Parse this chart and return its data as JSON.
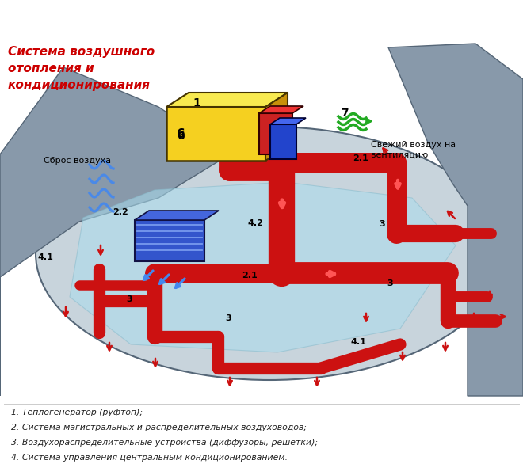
{
  "title": "Система воздушного\nотопления и\nкондиционирования",
  "title_color": "#cc0000",
  "title_fontsize": 11,
  "label_fresh_air": "Свежий воздух на\nвентиляцию",
  "label_drop_air": "Сброс воздуха",
  "legend_items": [
    "1. Теплогенератор (руфтоп);",
    "2. Система магистральных и распределительных воздуховодов;",
    "3. Воздухораспределительные устройства (диффузоры, решетки);",
    "4. Система управления центральным кондиционированием."
  ],
  "bg_color": "#ffffff",
  "diagram_bg": "#c8d4dc",
  "duct_color": "#cc1111",
  "glass_fill": "#aaddee",
  "unit_yellow": "#f5d020",
  "unit_red": "#cc2222",
  "unit_blue": "#2244cc",
  "green_color": "#22aa22",
  "arrow_blue": "#3366dd"
}
